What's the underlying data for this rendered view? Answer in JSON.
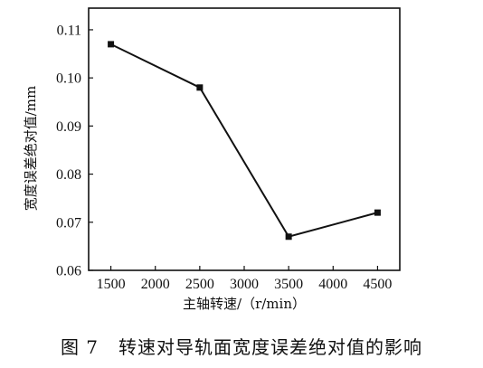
{
  "chart_data": {
    "type": "line",
    "x": [
      1500,
      2500,
      3500,
      4500
    ],
    "series": [
      {
        "values": [
          0.107,
          0.098,
          0.067,
          0.072
        ]
      }
    ],
    "xlabel": "主轴转速/（r/min）",
    "ylabel": "宽度误差绝对值/mm",
    "xticks": [
      1500,
      2000,
      2500,
      3000,
      3500,
      4000,
      4500
    ],
    "yticks": [
      0.06,
      0.07,
      0.08,
      0.09,
      0.1,
      0.11
    ],
    "ytick_labels": [
      "0.06",
      "0.07",
      "0.08",
      "0.09",
      "0.10",
      "0.11"
    ],
    "xlim": [
      1250,
      4750
    ],
    "ylim": [
      0.06,
      0.1145
    ],
    "grid": false,
    "line_color": "#111111"
  },
  "caption": {
    "number": "图 7",
    "text": "转速对导轨面宽度误差绝对值的影响"
  }
}
